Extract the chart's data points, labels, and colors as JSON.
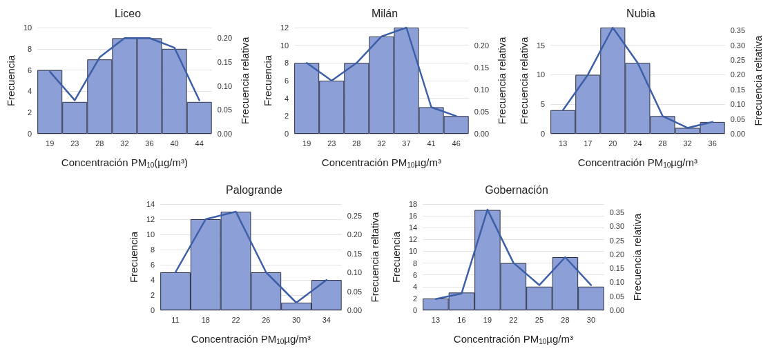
{
  "chart_data": [
    {
      "type": "bar",
      "title": "Liceo",
      "xlabel": "Concentración PM$_{10}$(µg/m³)",
      "ylabel": "Frecuencia",
      "y2label": "Frecuencia relativa",
      "categories": [
        "19",
        "23",
        "28",
        "32",
        "36",
        "40",
        "44"
      ],
      "series": [
        {
          "color": "#8c9fd6",
          "values": [
            6,
            3,
            7,
            9,
            9,
            8,
            3
          ]
        },
        {
          "type": "line",
          "axis": "y2",
          "color": "#3d5fa8",
          "values": [
            0.13,
            0.07,
            0.16,
            0.2,
            0.2,
            0.18,
            0.07
          ]
        }
      ],
      "ylim": [
        0,
        10
      ],
      "yticks": [
        0,
        2,
        4,
        6,
        8,
        10
      ],
      "y2lim": [
        0,
        0.222
      ],
      "y2ticks": [
        {
          "value": 0,
          "label": "0.00"
        },
        0.05,
        {
          "value": 0.1,
          "label": "0.10"
        },
        0.15,
        {
          "value": 0.2,
          "label": "0.20"
        }
      ],
      "grid": "y",
      "marker": "none",
      "line_style": "solid"
    },
    {
      "type": "bar",
      "title": "Milán",
      "xlabel": "Concentración PM$_{10}$µg/m³",
      "ylabel": "Frecuencia",
      "y2label": "Frecuencia relativa",
      "categories": [
        "19",
        "23",
        "28",
        "32",
        "37",
        "41",
        "46"
      ],
      "series": [
        {
          "color": "#8c9fd6",
          "values": [
            8,
            6,
            8,
            11,
            12,
            3,
            2
          ]
        },
        {
          "type": "line",
          "axis": "y2",
          "color": "#3d5fa8",
          "values": [
            0.16,
            0.12,
            0.16,
            0.22,
            0.24,
            0.06,
            0.04
          ]
        }
      ],
      "ylim": [
        0,
        12
      ],
      "yticks": [
        0,
        2,
        4,
        6,
        8,
        10,
        12
      ],
      "y2lim": [
        0,
        0.24
      ],
      "y2ticks": [
        {
          "value": 0,
          "label": "0.00"
        },
        0.05,
        {
          "value": 0.1,
          "label": "0.10"
        },
        0.15,
        {
          "value": 0.2,
          "label": "0.20"
        }
      ],
      "grid": "y",
      "marker": "none",
      "line_style": "solid"
    },
    {
      "type": "bar",
      "title": "Nubia",
      "xlabel": "Concentración PM$_{10}$µg/m³",
      "ylabel": "Frecuencia relativa",
      "y2label": "Frecuencia reltativa",
      "categories": [
        "13",
        "17",
        "20",
        "24",
        "28",
        "32",
        "36"
      ],
      "series": [
        {
          "color": "#8c9fd6",
          "values": [
            4,
            10,
            18,
            12,
            3,
            1,
            2
          ]
        },
        {
          "type": "line",
          "axis": "y2",
          "color": "#3d5fa8",
          "values": [
            0.08,
            0.2,
            0.36,
            0.24,
            0.06,
            0.02,
            0.04
          ]
        }
      ],
      "ylim": [
        0,
        18
      ],
      "yticks": [
        0,
        5,
        10,
        15
      ],
      "y2lim": [
        0,
        0.36
      ],
      "y2ticks": [
        {
          "value": 0,
          "label": "0.00"
        },
        0.05,
        {
          "value": 0.1,
          "label": "0.10"
        },
        0.15,
        {
          "value": 0.2,
          "label": "0.20"
        },
        0.25,
        {
          "value": 0.3,
          "label": "0.30"
        },
        0.35
      ],
      "grid": "y",
      "marker": "none",
      "line_style": "solid"
    },
    {
      "type": "bar",
      "title": "Palogrande",
      "xlabel": "Concentración PM$_{10}$µg/m³",
      "ylabel": "Frecuencia",
      "y2label": "Frecuencia reltativa",
      "categories": [
        "11",
        "18",
        "22",
        "26",
        "30",
        "34"
      ],
      "series": [
        {
          "color": "#8c9fd6",
          "values": [
            5,
            12,
            13,
            5,
            1,
            4
          ]
        },
        {
          "type": "line",
          "axis": "y2",
          "color": "#3d5fa8",
          "values": [
            0.1,
            0.24,
            0.26,
            0.1,
            0.02,
            0.08
          ]
        }
      ],
      "ylim": [
        0,
        14
      ],
      "yticks": [
        0,
        2,
        4,
        6,
        8,
        10,
        12,
        14
      ],
      "y2lim": [
        0,
        0.28
      ],
      "y2ticks": [
        {
          "value": 0,
          "label": "0.00"
        },
        0.05,
        {
          "value": 0.1,
          "label": "0.10"
        },
        0.15,
        {
          "value": 0.2,
          "label": "0.20"
        },
        0.25
      ],
      "grid": "y",
      "marker": "none",
      "line_style": "solid"
    },
    {
      "type": "bar",
      "title": "Gobernación",
      "xlabel": "Concentración PM$_{10}$µg/m³",
      "ylabel": "Frecuencia",
      "y2label": "Frecuencia relativa",
      "categories": [
        "13",
        "16",
        "19",
        "22",
        "25",
        "28",
        "30"
      ],
      "series": [
        {
          "color": "#8c9fd6",
          "values": [
            2,
            3,
            17,
            8,
            4,
            9,
            4
          ]
        },
        {
          "type": "line",
          "axis": "y2",
          "color": "#3d5fa8",
          "values": [
            0.04,
            0.06,
            0.36,
            0.17,
            0.09,
            0.19,
            0.09
          ]
        }
      ],
      "ylim": [
        0,
        18
      ],
      "yticks": [
        0,
        2,
        4,
        6,
        8,
        10,
        12,
        14,
        16,
        18
      ],
      "y2lim": [
        0,
        0.38
      ],
      "y2ticks": [
        {
          "value": 0,
          "label": "0.00"
        },
        0.05,
        {
          "value": 0.1,
          "label": "0.10"
        },
        0.15,
        {
          "value": 0.2,
          "label": "0.20"
        },
        0.25,
        {
          "value": 0.3,
          "label": "0.30"
        },
        0.35
      ],
      "grid": "y",
      "marker": "none",
      "line_style": "solid"
    }
  ]
}
